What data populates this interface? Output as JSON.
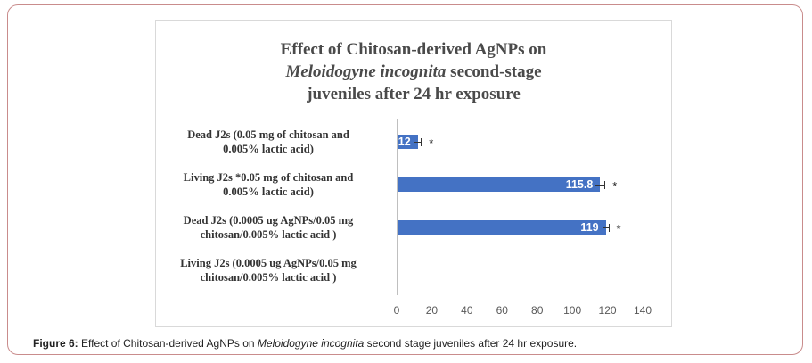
{
  "chart_data": {
    "type": "bar",
    "orientation": "horizontal",
    "title": {
      "line1": "Effect of Chitosan-derived AgNPs on",
      "line2_italic": "Meloidogyne incognita",
      "line2_rest": " second-stage",
      "line3": "juveniles after 24 hr exposure"
    },
    "categories": [
      [
        "Dead J2s (0.05 mg of chitosan and",
        "0.005% lactic acid)"
      ],
      [
        "Living J2s *0.05 mg of chitosan and",
        "0.005% lactic acid)"
      ],
      [
        "Dead J2s (0.0005 ug AgNPs/0.05 mg",
        "chitosan/0.005% lactic acid )"
      ],
      [
        "Living J2s (0.0005 ug AgNPs/0.05 mg",
        "chitosan/0.005% lactic acid )"
      ]
    ],
    "values": [
      12,
      115.8,
      119,
      0
    ],
    "data_labels": [
      "12",
      "115.8",
      "119",
      ""
    ],
    "error": [
      1.8,
      2.5,
      1.5,
      0
    ],
    "significance": [
      "*",
      "*",
      "*",
      ""
    ],
    "xlim": [
      0,
      140
    ],
    "xticks": [
      0,
      20,
      40,
      60,
      80,
      100,
      120,
      140
    ],
    "xlabel": "",
    "ylabel": "",
    "grid": false,
    "bar_color": "#4472c4"
  },
  "caption": {
    "label": "Figure 6:",
    "text_before": " Effect of Chitosan-derived AgNPs on ",
    "italic": "Meloidogyne incognita",
    "text_after": " second stage juveniles after 24 hr exposure."
  }
}
